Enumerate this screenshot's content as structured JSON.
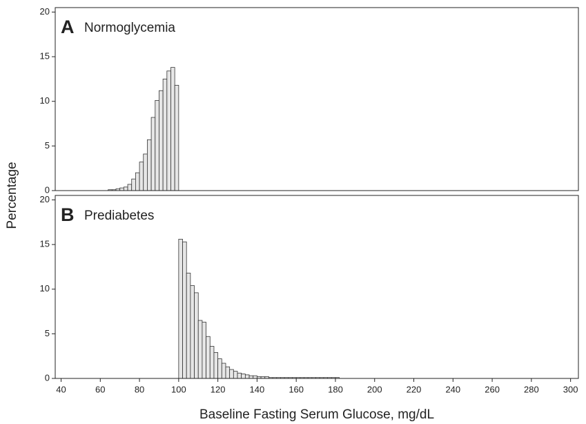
{
  "ylabel": "Percentage",
  "chart_data": [
    {
      "type": "histogram",
      "panel": "A",
      "title": "Normoglycemia",
      "bins": [
        44,
        46,
        48,
        50,
        52,
        54,
        56,
        58,
        60,
        62,
        64,
        66,
        68,
        70,
        72,
        74,
        76,
        78,
        80,
        82,
        84,
        86,
        88,
        90,
        92,
        94,
        96,
        98,
        100
      ],
      "values": [
        0,
        0,
        0,
        0,
        0,
        0,
        0,
        0,
        0,
        0,
        0.1,
        0.1,
        0.2,
        0.3,
        0.4,
        0.7,
        1.3,
        2.0,
        3.2,
        4.1,
        5.7,
        8.2,
        10.1,
        11.2,
        12.5,
        13.4,
        13.8,
        11.8
      ],
      "color": "#e6e6e6",
      "xlim": [
        37,
        304
      ],
      "ylim": [
        0,
        20.5
      ],
      "yticks": [
        0,
        5,
        10,
        15,
        20
      ]
    },
    {
      "type": "histogram",
      "panel": "B",
      "title": "Prediabetes",
      "bins": [
        100,
        102,
        104,
        106,
        108,
        110,
        112,
        114,
        116,
        118,
        120,
        122,
        124,
        126,
        128,
        130,
        132,
        134,
        136,
        138,
        140,
        142,
        144,
        146,
        148,
        150,
        152,
        154,
        156,
        158,
        160,
        162,
        164,
        166,
        168,
        170,
        172,
        174,
        176,
        178,
        180,
        182,
        184,
        186,
        188,
        190,
        192,
        194,
        196,
        198,
        200,
        202,
        204,
        206,
        208,
        210,
        212,
        214,
        216,
        218,
        220,
        222,
        224,
        226,
        228,
        230,
        232,
        234,
        236,
        238,
        240,
        242,
        244,
        246,
        248,
        250,
        252,
        254,
        256,
        258,
        260,
        262,
        264,
        266,
        268,
        270,
        272,
        274,
        276,
        278,
        280,
        282,
        284,
        286,
        288
      ],
      "values": [
        15.6,
        15.3,
        11.8,
        10.4,
        9.6,
        6.5,
        6.3,
        4.7,
        3.6,
        2.9,
        2.2,
        1.7,
        1.3,
        1.0,
        0.8,
        0.6,
        0.5,
        0.4,
        0.3,
        0.3,
        0.2,
        0.2,
        0.2,
        0.1,
        0.1,
        0.1,
        0.1,
        0.1,
        0.1,
        0.1,
        0.1,
        0.1,
        0.1,
        0.1,
        0.1,
        0.1,
        0.1,
        0.1,
        0.1,
        0.1,
        0.1,
        0,
        0,
        0,
        0,
        0,
        0,
        0,
        0,
        0,
        0,
        0,
        0,
        0,
        0,
        0,
        0,
        0,
        0,
        0,
        0,
        0,
        0,
        0,
        0,
        0,
        0,
        0,
        0,
        0,
        0,
        0,
        0,
        0,
        0,
        0,
        0,
        0,
        0,
        0,
        0,
        0,
        0,
        0,
        0,
        0,
        0,
        0,
        0,
        0,
        0,
        0,
        0,
        0,
        0
      ],
      "color": "#e6e6e6",
      "xlim": [
        37,
        304
      ],
      "xticks": [
        40,
        60,
        80,
        100,
        120,
        140,
        160,
        180,
        200,
        220,
        240,
        260,
        280,
        300
      ],
      "xlabel": "Baseline Fasting Serum Glucose, mg/dL",
      "ylim": [
        0,
        20.5
      ],
      "yticks": [
        0,
        5,
        10,
        15,
        20
      ]
    }
  ]
}
